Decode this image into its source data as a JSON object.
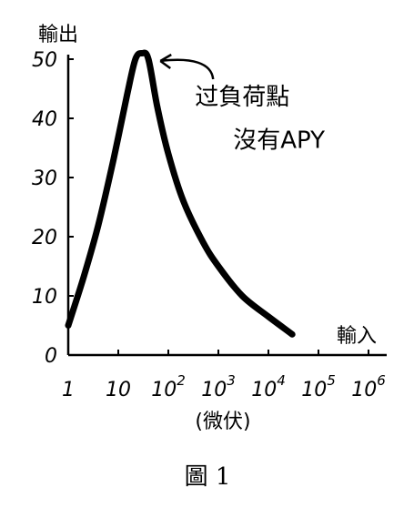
{
  "chart_data": {
    "type": "line",
    "ylabel": "輸出",
    "xlabel": "輸入",
    "unit": "(微伏)",
    "x_scale": "log",
    "x_ticks": [
      {
        "base": "1",
        "exp": ""
      },
      {
        "base": "10",
        "exp": ""
      },
      {
        "base": "10",
        "exp": "2"
      },
      {
        "base": "10",
        "exp": "3"
      },
      {
        "base": "10",
        "exp": "4"
      },
      {
        "base": "10",
        "exp": "5"
      },
      {
        "base": "10",
        "exp": "6"
      }
    ],
    "y_ticks": [
      "0",
      "10",
      "20",
      "30",
      "40",
      "50"
    ],
    "ylim": [
      0,
      52
    ],
    "xlim": [
      1,
      1000000
    ],
    "grid": false,
    "annotations": [
      {
        "text": "过負荷點",
        "x": 30,
        "y": 50
      },
      {
        "text": "沒有APY",
        "x": 3000,
        "y": 35
      }
    ],
    "series": [
      {
        "x": [
          1,
          2,
          4,
          8,
          15,
          22,
          30,
          40,
          60,
          100,
          200,
          500,
          1000,
          3000,
          10000,
          30000
        ],
        "y": [
          5,
          13,
          22,
          33,
          44,
          50,
          51,
          50,
          42,
          34,
          26,
          19,
          15,
          10,
          6.5,
          3.5
        ]
      }
    ]
  },
  "figure_caption": "圖 1"
}
